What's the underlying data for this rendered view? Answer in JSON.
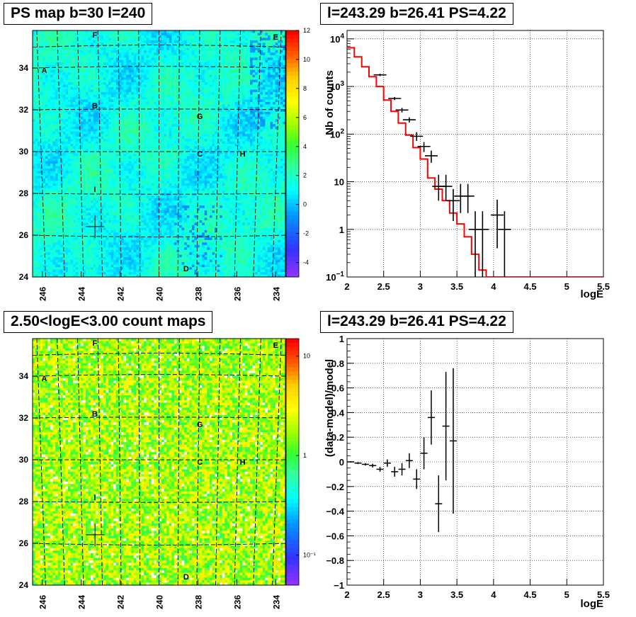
{
  "panels": {
    "top_left_title": "PS map b=30 l=240",
    "bottom_left_title": "2.50<logE<3.00 count maps",
    "top_right_title": "l=243.29 b=26.41 PS=4.22",
    "bottom_right_title": "l=243.29 b=26.41 PS=4.22"
  },
  "chart_data": [
    {
      "type": "heatmap",
      "id": "ps-map",
      "title": "PS map b=30 l=240",
      "x_ticks": [
        "246",
        "244",
        "242",
        "240",
        "238",
        "236",
        "234"
      ],
      "y_ticks": [
        "24",
        "26",
        "28",
        "30",
        "32",
        "34"
      ],
      "xlim": [
        246.5,
        233.5
      ],
      "ylim": [
        24,
        35.8
      ],
      "colorbar": {
        "ticks": [
          "12",
          "10",
          "8",
          "6",
          "4",
          "2",
          "0",
          "-2",
          "-4"
        ],
        "range": [
          -5,
          12
        ],
        "scale": "linear"
      },
      "typical_value": 1.5,
      "source_labels": [
        {
          "label": "A",
          "l": 245.9,
          "b": 33.9
        },
        {
          "label": "B",
          "l": 243.3,
          "b": 32.2
        },
        {
          "label": "C",
          "l": 237.9,
          "b": 29.9
        },
        {
          "label": "D",
          "l": 238.6,
          "b": 24.4
        },
        {
          "label": "E",
          "l": 234.0,
          "b": 35.5
        },
        {
          "label": "F",
          "l": 243.3,
          "b": 35.6
        },
        {
          "label": "G",
          "l": 237.9,
          "b": 31.7
        },
        {
          "label": "H",
          "l": 235.7,
          "b": 29.9
        },
        {
          "label": "I",
          "l": 243.3,
          "b": 28.2
        }
      ],
      "marker": {
        "l": 243.29,
        "b": 26.41
      }
    },
    {
      "type": "heatmap",
      "id": "count-map",
      "title": "2.50<logE<3.00 count maps",
      "x_ticks": [
        "246",
        "244",
        "242",
        "240",
        "238",
        "236",
        "234"
      ],
      "y_ticks": [
        "24",
        "26",
        "28",
        "30",
        "32",
        "34"
      ],
      "xlim": [
        246.5,
        233.5
      ],
      "ylim": [
        24,
        35.8
      ],
      "colorbar": {
        "ticks": [
          "10",
          "1",
          "10⁻¹"
        ],
        "range": [
          0.05,
          15
        ],
        "scale": "log"
      },
      "source_labels": [
        {
          "label": "A",
          "l": 245.9,
          "b": 33.9
        },
        {
          "label": "B",
          "l": 243.3,
          "b": 32.2
        },
        {
          "label": "C",
          "l": 237.9,
          "b": 29.9
        },
        {
          "label": "D",
          "l": 238.6,
          "b": 24.4
        },
        {
          "label": "E",
          "l": 234.0,
          "b": 35.5
        },
        {
          "label": "F",
          "l": 243.3,
          "b": 35.6
        },
        {
          "label": "G",
          "l": 237.9,
          "b": 31.7
        },
        {
          "label": "H",
          "l": 235.7,
          "b": 29.9
        },
        {
          "label": "I",
          "l": 243.3,
          "b": 28.2
        }
      ],
      "marker": {
        "l": 243.29,
        "b": 26.41
      }
    },
    {
      "type": "line",
      "id": "spectrum",
      "title": "l=243.29 b=26.41 PS=4.22",
      "xlabel": "logE",
      "ylabel": "Nb of counts",
      "xlim": [
        2,
        5.5
      ],
      "ylim": [
        0.1,
        15000
      ],
      "yscale": "log",
      "x_ticks": [
        "2",
        "2.5",
        "3",
        "3.5",
        "4",
        "4.5",
        "5",
        "5.5"
      ],
      "y_ticks": [
        {
          "v": 0.1,
          "base": "10",
          "exp": "−1"
        },
        {
          "v": 1,
          "base": "1",
          "exp": ""
        },
        {
          "v": 10,
          "base": "10",
          "exp": ""
        },
        {
          "v": 100,
          "base": "10",
          "exp": "2"
        },
        {
          "v": 1000,
          "base": "10",
          "exp": "3"
        },
        {
          "v": 10000,
          "base": "10",
          "exp": "4"
        }
      ],
      "grid": true,
      "series": [
        {
          "kind": "model-step",
          "color": "#ff0000",
          "bin_edges": [
            2.0,
            2.1,
            2.2,
            2.3,
            2.4,
            2.5,
            2.6,
            2.7,
            2.8,
            2.9,
            3.0,
            3.1,
            3.2,
            3.3,
            3.4,
            3.5,
            3.6,
            3.7,
            3.8,
            3.9,
            5.5
          ],
          "values": [
            6500,
            4200,
            2600,
            1600,
            1000,
            520,
            300,
            170,
            95,
            52,
            30,
            12,
            7,
            4,
            2.2,
            1.3,
            0.7,
            0.3,
            0.14,
            0.1
          ]
        },
        {
          "kind": "data-points",
          "color": "#000000",
          "x": [
            2.45,
            2.65,
            2.75,
            2.85,
            2.95,
            3.05,
            3.15,
            3.25,
            3.35,
            3.45,
            3.55,
            3.65,
            3.75,
            3.85,
            4.05,
            4.15
          ],
          "y": [
            1750,
            560,
            320,
            200,
            90,
            55,
            35,
            8,
            8,
            4,
            5,
            5,
            1,
            1,
            2,
            1
          ],
          "y_low": [
            1650,
            520,
            285,
            175,
            72,
            42,
            25,
            4,
            4,
            1.5,
            2.2,
            2.2,
            0.1,
            0.1,
            0.4,
            0.1
          ],
          "y_high": [
            1850,
            600,
            355,
            225,
            110,
            68,
            45,
            14,
            14,
            7,
            9,
            9,
            2.4,
            2.4,
            4.2,
            2.4
          ]
        }
      ]
    },
    {
      "type": "scatter",
      "id": "residuals",
      "title": "l=243.29 b=26.41 PS=4.22",
      "xlabel": "logE",
      "ylabel": "(data-model)/model",
      "xlim": [
        2,
        5.5
      ],
      "ylim": [
        -1,
        1
      ],
      "x_ticks": [
        "2",
        "2.5",
        "3",
        "3.5",
        "4",
        "4.5",
        "5",
        "5.5"
      ],
      "y_ticks": [
        "1",
        "0.8",
        "0.6",
        "0.4",
        "0.2",
        "0",
        "−0.2",
        "−0.4",
        "−0.6",
        "−0.8",
        "−1"
      ],
      "grid": true,
      "series": [
        {
          "kind": "data-points",
          "color": "#000000",
          "x": [
            2.05,
            2.15,
            2.25,
            2.35,
            2.45,
            2.55,
            2.65,
            2.75,
            2.85,
            2.95,
            3.05,
            3.15,
            3.25,
            3.35,
            3.45
          ],
          "y": [
            0.0,
            -0.01,
            -0.02,
            -0.03,
            -0.06,
            -0.01,
            -0.08,
            -0.06,
            0.01,
            -0.14,
            0.07,
            0.36,
            -0.34,
            0.29,
            0.17
          ],
          "y_err": [
            0.005,
            0.008,
            0.01,
            0.015,
            0.02,
            0.03,
            0.04,
            0.05,
            0.06,
            0.08,
            0.13,
            0.22,
            0.23,
            0.44,
            0.59
          ]
        }
      ]
    }
  ]
}
